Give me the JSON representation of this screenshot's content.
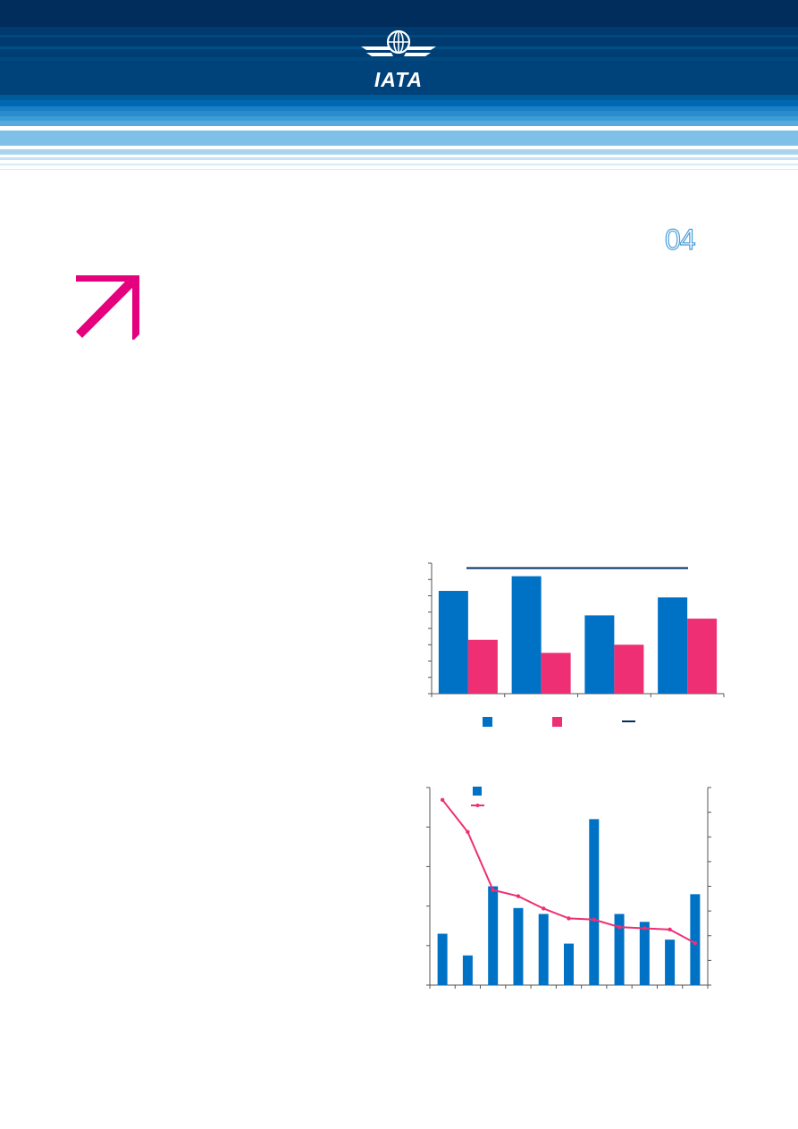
{
  "header": {
    "logo_text": "IATA",
    "colors": {
      "navy": "#002d5c",
      "mid_blue": "#0068b3",
      "light_blue": "#7fc0e8",
      "accent_pink": "#e5007e"
    }
  },
  "page": {
    "number": "04"
  },
  "decor": {
    "arrow_icon": "arrow-up-right-icon",
    "arrow_color": "#e5007e"
  },
  "chart_data": [
    {
      "type": "bar",
      "categories": [
        "",
        "",
        "",
        ""
      ],
      "series": [
        {
          "values": [
            6.3,
            7.2,
            4.8,
            5.9
          ],
          "color": "#0072c6"
        },
        {
          "values": [
            3.3,
            2.5,
            3.0,
            4.6
          ],
          "color": "#ee2f74"
        }
      ],
      "reference_line": {
        "value": 7.7,
        "color": "#002d5c"
      },
      "ylim": [
        0,
        8
      ],
      "legend": {
        "placement": "bottom",
        "entries": [
          "",
          "",
          ""
        ]
      },
      "grid": false
    },
    {
      "type": "bar",
      "categories": [
        "",
        "",
        "",
        "",
        "",
        "",
        "",
        "",
        "",
        "",
        ""
      ],
      "series": [
        {
          "type": "bar",
          "values": [
            1.3,
            0.75,
            2.5,
            1.95,
            1.8,
            1.05,
            4.2,
            1.8,
            1.6,
            1.15,
            2.3
          ],
          "color": "#0072c6"
        },
        {
          "type": "line",
          "values": [
            7.5,
            6.2,
            3.85,
            3.6,
            3.1,
            2.7,
            2.65,
            2.35,
            2.3,
            2.25,
            1.7
          ],
          "color": "#ee2f74"
        }
      ],
      "ylim_left": [
        0,
        5
      ],
      "ylim_right": [
        0,
        8
      ],
      "legend": {
        "placement": "top-left",
        "entries": [
          "",
          ""
        ]
      },
      "grid": false
    }
  ]
}
